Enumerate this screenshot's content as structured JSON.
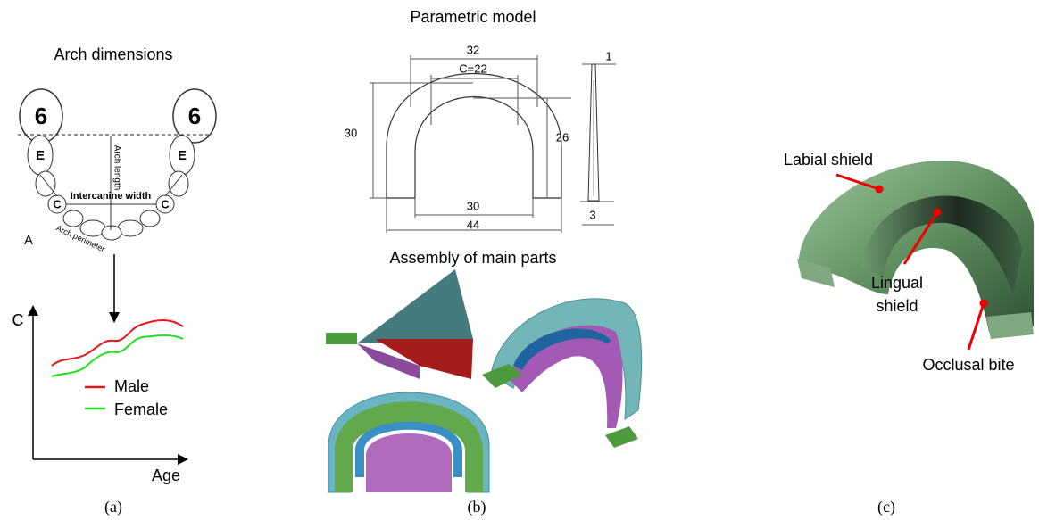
{
  "panel_a": {
    "title": "Arch dimensions",
    "teeth": {
      "molar_left": "6",
      "molar_right": "6",
      "e_left": "E",
      "e_right": "E",
      "c_left": "C",
      "c_right": "C"
    },
    "arch_length": "Arch length",
    "intercanine_width": "Intercanine width",
    "arch_perimeter": "Arch perimeter",
    "figure_label": "A",
    "plot": {
      "y_label": "C",
      "x_label": "Age",
      "legend": [
        {
          "name": "Male",
          "color": "#e8141e"
        },
        {
          "name": "Female",
          "color": "#22e022"
        }
      ]
    },
    "caption": "(a)"
  },
  "panel_b": {
    "title": "Parametric model",
    "dimensions": {
      "top_outer": 32,
      "top_inner": "C=22",
      "left_height": 30,
      "right_height": 26,
      "thickness_top": 1,
      "bottom_inner": 30,
      "bottom_outer": 44,
      "thickness_bottom": 3
    },
    "assembly_title": "Assembly of main parts",
    "caption": "(b)"
  },
  "panel_c": {
    "labels": {
      "labial": "Labial shield",
      "lingual_1": "Lingual",
      "lingual_2": "shield",
      "occlusal": "Occlusal bite"
    },
    "caption": "(c)"
  }
}
